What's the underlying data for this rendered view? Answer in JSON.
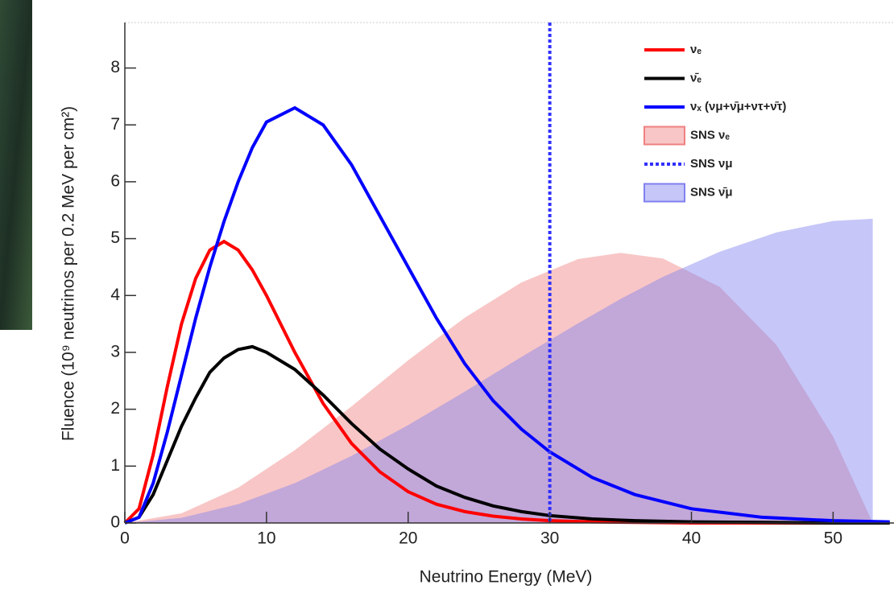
{
  "chart_data": {
    "type": "line",
    "x_label": "Neutrino Energy (MeV)",
    "y_label": "Fluence (10⁹ neutrinos per 0.2 MeV per cm²)",
    "xlim": [
      0,
      54.3
    ],
    "ylim": [
      0,
      8.8
    ],
    "xticks": [
      0,
      10,
      20,
      30,
      40,
      50
    ],
    "yticks": [
      0,
      1,
      2,
      3,
      4,
      5,
      6,
      7,
      8
    ],
    "legend": "upper right",
    "series": [
      {
        "name": "SNS νₑ",
        "color": "#f08080",
        "fill": true,
        "x": [
          0,
          4,
          8,
          12,
          16,
          20,
          24,
          28,
          32,
          35,
          38,
          42,
          46,
          50,
          52.8
        ],
        "values": [
          0,
          0.17,
          0.62,
          1.28,
          2.05,
          2.86,
          3.61,
          4.23,
          4.64,
          4.75,
          4.65,
          4.15,
          3.13,
          1.52,
          0
        ]
      },
      {
        "name": "SNS ν̄μ",
        "color": "#8080f0",
        "fill": true,
        "x": [
          0,
          4,
          8,
          12,
          16,
          20,
          24,
          28,
          32,
          35,
          38,
          42,
          46,
          50,
          52.8
        ],
        "values": [
          0,
          0.09,
          0.33,
          0.7,
          1.18,
          1.72,
          2.31,
          2.92,
          3.51,
          3.94,
          4.33,
          4.77,
          5.11,
          5.31,
          5.35
        ]
      },
      {
        "name": "νₑ",
        "color": "#ff0000",
        "x": [
          0,
          1,
          2,
          3,
          4,
          5,
          6,
          7,
          8,
          9,
          10,
          12,
          14,
          16,
          18,
          20,
          22,
          24,
          26,
          28,
          30,
          33,
          36,
          40,
          45,
          50,
          54
        ],
        "values": [
          0,
          0.25,
          1.2,
          2.4,
          3.5,
          4.3,
          4.8,
          4.95,
          4.8,
          4.45,
          4.0,
          3.0,
          2.1,
          1.4,
          0.9,
          0.55,
          0.33,
          0.2,
          0.12,
          0.07,
          0.04,
          0.02,
          0.01,
          0,
          0,
          0,
          0
        ]
      },
      {
        "name": "ν̄ₑ",
        "color": "#000000",
        "x": [
          0,
          1,
          2,
          3,
          4,
          5,
          6,
          7,
          8,
          9,
          10,
          12,
          14,
          16,
          18,
          20,
          22,
          24,
          26,
          28,
          30,
          33,
          36,
          40,
          45,
          50,
          54
        ],
        "values": [
          0,
          0.1,
          0.5,
          1.1,
          1.7,
          2.2,
          2.65,
          2.9,
          3.05,
          3.1,
          3.0,
          2.7,
          2.25,
          1.75,
          1.3,
          0.95,
          0.65,
          0.45,
          0.3,
          0.2,
          0.13,
          0.07,
          0.04,
          0.02,
          0.01,
          0,
          0
        ]
      },
      {
        "name": "νₓ (νμ+ν̄μ+ντ+ν̄τ)",
        "color": "#0000ff",
        "x": [
          0,
          1,
          2,
          3,
          4,
          5,
          6,
          7,
          8,
          9,
          10,
          12,
          14,
          16,
          18,
          20,
          22,
          24,
          26,
          28,
          30,
          33,
          36,
          40,
          45,
          50,
          54
        ],
        "values": [
          0,
          0.1,
          0.7,
          1.6,
          2.6,
          3.6,
          4.5,
          5.3,
          6.0,
          6.6,
          7.05,
          7.3,
          7.0,
          6.3,
          5.4,
          4.5,
          3.6,
          2.8,
          2.15,
          1.65,
          1.25,
          0.8,
          0.5,
          0.25,
          0.1,
          0.04,
          0.02
        ]
      },
      {
        "name": "SNS νμ",
        "color": "#3030ff",
        "dashed": true,
        "x": [
          30
        ]
      }
    ]
  }
}
